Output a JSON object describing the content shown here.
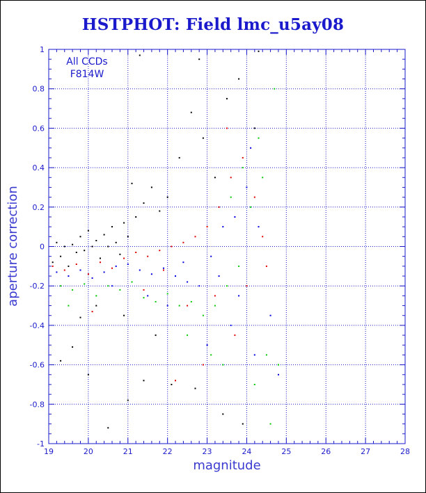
{
  "chart_data": {
    "type": "scatter",
    "title": "HSTPHOT: Field lmc_u5ay08",
    "xlabel": "magnitude",
    "ylabel": "aperture correction",
    "xlim": [
      19,
      28
    ],
    "ylim": [
      -1,
      1
    ],
    "x_ticks": [
      "19",
      "20",
      "21",
      "22",
      "23",
      "24",
      "25",
      "26",
      "27",
      "28"
    ],
    "y_ticks": [
      "-1",
      "-0.8",
      "-0.6",
      "-0.4",
      "-0.2",
      "0",
      "0.2",
      "0.4",
      "0.6",
      "0.8",
      "1"
    ],
    "grid": true,
    "annotations": [
      "All CCDs",
      "F814W"
    ],
    "series_colors": {
      "black": "#000000",
      "red": "#e00000",
      "blue": "#0000e0",
      "green": "#00c800"
    },
    "points": [
      {
        "c": "black",
        "x": 19.1,
        "y": -0.08
      },
      {
        "c": "black",
        "x": 19.2,
        "y": 0.02
      },
      {
        "c": "black",
        "x": 19.3,
        "y": -0.05
      },
      {
        "c": "black",
        "x": 19.4,
        "y": 0.0
      },
      {
        "c": "black",
        "x": 19.5,
        "y": -0.1
      },
      {
        "c": "black",
        "x": 19.6,
        "y": 0.01
      },
      {
        "c": "black",
        "x": 19.7,
        "y": -0.03
      },
      {
        "c": "black",
        "x": 19.8,
        "y": 0.05
      },
      {
        "c": "black",
        "x": 19.9,
        "y": -0.02
      },
      {
        "c": "black",
        "x": 20.0,
        "y": 0.08
      },
      {
        "c": "black",
        "x": 20.1,
        "y": 0.0
      },
      {
        "c": "black",
        "x": 20.2,
        "y": 0.03
      },
      {
        "c": "black",
        "x": 20.3,
        "y": -0.06
      },
      {
        "c": "black",
        "x": 20.4,
        "y": 0.06
      },
      {
        "c": "black",
        "x": 20.5,
        "y": 0.0
      },
      {
        "c": "black",
        "x": 20.6,
        "y": 0.1
      },
      {
        "c": "black",
        "x": 20.7,
        "y": 0.02
      },
      {
        "c": "black",
        "x": 20.8,
        "y": -0.04
      },
      {
        "c": "black",
        "x": 20.9,
        "y": 0.12
      },
      {
        "c": "black",
        "x": 21.0,
        "y": 0.05
      },
      {
        "c": "black",
        "x": 21.2,
        "y": 0.15
      },
      {
        "c": "black",
        "x": 21.4,
        "y": 0.22
      },
      {
        "c": "black",
        "x": 21.6,
        "y": 0.3
      },
      {
        "c": "black",
        "x": 21.8,
        "y": 0.18
      },
      {
        "c": "black",
        "x": 22.0,
        "y": 0.25
      },
      {
        "c": "black",
        "x": 22.3,
        "y": 0.45
      },
      {
        "c": "black",
        "x": 22.6,
        "y": 0.68
      },
      {
        "c": "black",
        "x": 22.9,
        "y": 0.55
      },
      {
        "c": "black",
        "x": 23.2,
        "y": 0.35
      },
      {
        "c": "black",
        "x": 23.5,
        "y": 0.75
      },
      {
        "c": "black",
        "x": 23.8,
        "y": 0.85
      },
      {
        "c": "black",
        "x": 24.2,
        "y": 0.6
      },
      {
        "c": "black",
        "x": 21.3,
        "y": 0.97
      },
      {
        "c": "black",
        "x": 22.8,
        "y": 0.95
      },
      {
        "c": "black",
        "x": 24.3,
        "y": 0.99
      },
      {
        "c": "black",
        "x": 21.1,
        "y": 0.32
      },
      {
        "c": "black",
        "x": 20.2,
        "y": -0.3
      },
      {
        "c": "black",
        "x": 19.3,
        "y": -0.58
      },
      {
        "c": "black",
        "x": 19.6,
        "y": -0.51
      },
      {
        "c": "black",
        "x": 20.0,
        "y": -0.65
      },
      {
        "c": "black",
        "x": 20.5,
        "y": -0.92
      },
      {
        "c": "black",
        "x": 21.0,
        "y": -0.78
      },
      {
        "c": "black",
        "x": 21.4,
        "y": -0.68
      },
      {
        "c": "black",
        "x": 22.1,
        "y": -0.7
      },
      {
        "c": "black",
        "x": 22.7,
        "y": -0.72
      },
      {
        "c": "black",
        "x": 23.4,
        "y": -0.85
      },
      {
        "c": "black",
        "x": 23.9,
        "y": -0.9
      },
      {
        "c": "black",
        "x": 19.8,
        "y": -0.36
      },
      {
        "c": "black",
        "x": 21.7,
        "y": -0.45
      },
      {
        "c": "black",
        "x": 20.9,
        "y": -0.35
      },
      {
        "c": "red",
        "x": 19.1,
        "y": -0.1
      },
      {
        "c": "red",
        "x": 19.4,
        "y": -0.12
      },
      {
        "c": "red",
        "x": 19.7,
        "y": -0.09
      },
      {
        "c": "red",
        "x": 20.0,
        "y": -0.14
      },
      {
        "c": "red",
        "x": 20.3,
        "y": -0.08
      },
      {
        "c": "red",
        "x": 20.6,
        "y": -0.11
      },
      {
        "c": "red",
        "x": 20.9,
        "y": -0.06
      },
      {
        "c": "red",
        "x": 21.2,
        "y": -0.03
      },
      {
        "c": "red",
        "x": 21.5,
        "y": -0.05
      },
      {
        "c": "red",
        "x": 21.8,
        "y": -0.02
      },
      {
        "c": "red",
        "x": 22.1,
        "y": 0.0
      },
      {
        "c": "red",
        "x": 22.4,
        "y": 0.02
      },
      {
        "c": "red",
        "x": 22.7,
        "y": 0.05
      },
      {
        "c": "red",
        "x": 23.0,
        "y": 0.1
      },
      {
        "c": "red",
        "x": 23.3,
        "y": 0.2
      },
      {
        "c": "red",
        "x": 23.6,
        "y": 0.35
      },
      {
        "c": "red",
        "x": 23.9,
        "y": 0.45
      },
      {
        "c": "red",
        "x": 24.2,
        "y": 0.25
      },
      {
        "c": "red",
        "x": 24.5,
        "y": -0.1
      },
      {
        "c": "red",
        "x": 23.2,
        "y": -0.25
      },
      {
        "c": "red",
        "x": 22.5,
        "y": -0.3
      },
      {
        "c": "red",
        "x": 21.4,
        "y": -0.22
      },
      {
        "c": "red",
        "x": 20.1,
        "y": -0.33
      },
      {
        "c": "red",
        "x": 22.9,
        "y": -0.6
      },
      {
        "c": "red",
        "x": 23.7,
        "y": -0.45
      },
      {
        "c": "red",
        "x": 24.0,
        "y": -0.2
      },
      {
        "c": "red",
        "x": 23.5,
        "y": 0.6
      },
      {
        "c": "red",
        "x": 22.2,
        "y": -0.68
      },
      {
        "c": "red",
        "x": 24.4,
        "y": 0.05
      },
      {
        "c": "red",
        "x": 21.9,
        "y": -0.12
      },
      {
        "c": "blue",
        "x": 19.2,
        "y": -0.13
      },
      {
        "c": "blue",
        "x": 19.5,
        "y": -0.15
      },
      {
        "c": "blue",
        "x": 19.8,
        "y": -0.12
      },
      {
        "c": "blue",
        "x": 20.1,
        "y": -0.16
      },
      {
        "c": "blue",
        "x": 20.4,
        "y": -0.13
      },
      {
        "c": "blue",
        "x": 20.7,
        "y": -0.1
      },
      {
        "c": "blue",
        "x": 21.0,
        "y": -0.09
      },
      {
        "c": "blue",
        "x": 21.3,
        "y": -0.12
      },
      {
        "c": "blue",
        "x": 21.6,
        "y": -0.14
      },
      {
        "c": "blue",
        "x": 21.9,
        "y": -0.11
      },
      {
        "c": "blue",
        "x": 22.2,
        "y": -0.15
      },
      {
        "c": "blue",
        "x": 22.5,
        "y": -0.18
      },
      {
        "c": "blue",
        "x": 22.8,
        "y": -0.2
      },
      {
        "c": "blue",
        "x": 23.1,
        "y": -0.05
      },
      {
        "c": "blue",
        "x": 23.4,
        "y": 0.1
      },
      {
        "c": "blue",
        "x": 23.7,
        "y": 0.15
      },
      {
        "c": "blue",
        "x": 24.0,
        "y": 0.3
      },
      {
        "c": "blue",
        "x": 24.3,
        "y": 0.1
      },
      {
        "c": "blue",
        "x": 24.6,
        "y": -0.35
      },
      {
        "c": "blue",
        "x": 22.0,
        "y": -0.3
      },
      {
        "c": "blue",
        "x": 21.5,
        "y": -0.25
      },
      {
        "c": "blue",
        "x": 23.6,
        "y": -0.4
      },
      {
        "c": "blue",
        "x": 23.0,
        "y": -0.5
      },
      {
        "c": "blue",
        "x": 24.8,
        "y": -0.65
      },
      {
        "c": "blue",
        "x": 24.2,
        "y": -0.55
      },
      {
        "c": "blue",
        "x": 23.3,
        "y": -0.15
      },
      {
        "c": "blue",
        "x": 22.4,
        "y": -0.08
      },
      {
        "c": "blue",
        "x": 20.6,
        "y": -0.2
      },
      {
        "c": "blue",
        "x": 24.1,
        "y": 0.5
      },
      {
        "c": "blue",
        "x": 23.8,
        "y": -0.25
      },
      {
        "c": "green",
        "x": 19.3,
        "y": -0.2
      },
      {
        "c": "green",
        "x": 19.6,
        "y": -0.22
      },
      {
        "c": "green",
        "x": 19.9,
        "y": -0.19
      },
      {
        "c": "green",
        "x": 20.2,
        "y": -0.25
      },
      {
        "c": "green",
        "x": 20.5,
        "y": -0.2
      },
      {
        "c": "green",
        "x": 20.8,
        "y": -0.22
      },
      {
        "c": "green",
        "x": 21.1,
        "y": -0.18
      },
      {
        "c": "green",
        "x": 21.4,
        "y": -0.26
      },
      {
        "c": "green",
        "x": 21.7,
        "y": -0.28
      },
      {
        "c": "green",
        "x": 22.0,
        "y": -0.24
      },
      {
        "c": "green",
        "x": 22.3,
        "y": -0.3
      },
      {
        "c": "green",
        "x": 22.6,
        "y": -0.28
      },
      {
        "c": "green",
        "x": 22.9,
        "y": -0.35
      },
      {
        "c": "green",
        "x": 23.2,
        "y": -0.3
      },
      {
        "c": "green",
        "x": 23.5,
        "y": -0.2
      },
      {
        "c": "green",
        "x": 23.8,
        "y": -0.1
      },
      {
        "c": "green",
        "x": 24.1,
        "y": 0.2
      },
      {
        "c": "green",
        "x": 24.4,
        "y": 0.35
      },
      {
        "c": "green",
        "x": 24.7,
        "y": 0.8
      },
      {
        "c": "green",
        "x": 24.3,
        "y": 0.55
      },
      {
        "c": "green",
        "x": 23.9,
        "y": 0.4
      },
      {
        "c": "green",
        "x": 23.6,
        "y": 0.25
      },
      {
        "c": "green",
        "x": 24.5,
        "y": -0.55
      },
      {
        "c": "green",
        "x": 24.2,
        "y": -0.7
      },
      {
        "c": "green",
        "x": 23.4,
        "y": -0.6
      },
      {
        "c": "green",
        "x": 24.6,
        "y": -0.9
      },
      {
        "c": "green",
        "x": 22.5,
        "y": -0.45
      },
      {
        "c": "green",
        "x": 23.1,
        "y": -0.55
      },
      {
        "c": "green",
        "x": 19.5,
        "y": -0.3
      },
      {
        "c": "green",
        "x": 24.8,
        "y": -0.6
      }
    ]
  }
}
